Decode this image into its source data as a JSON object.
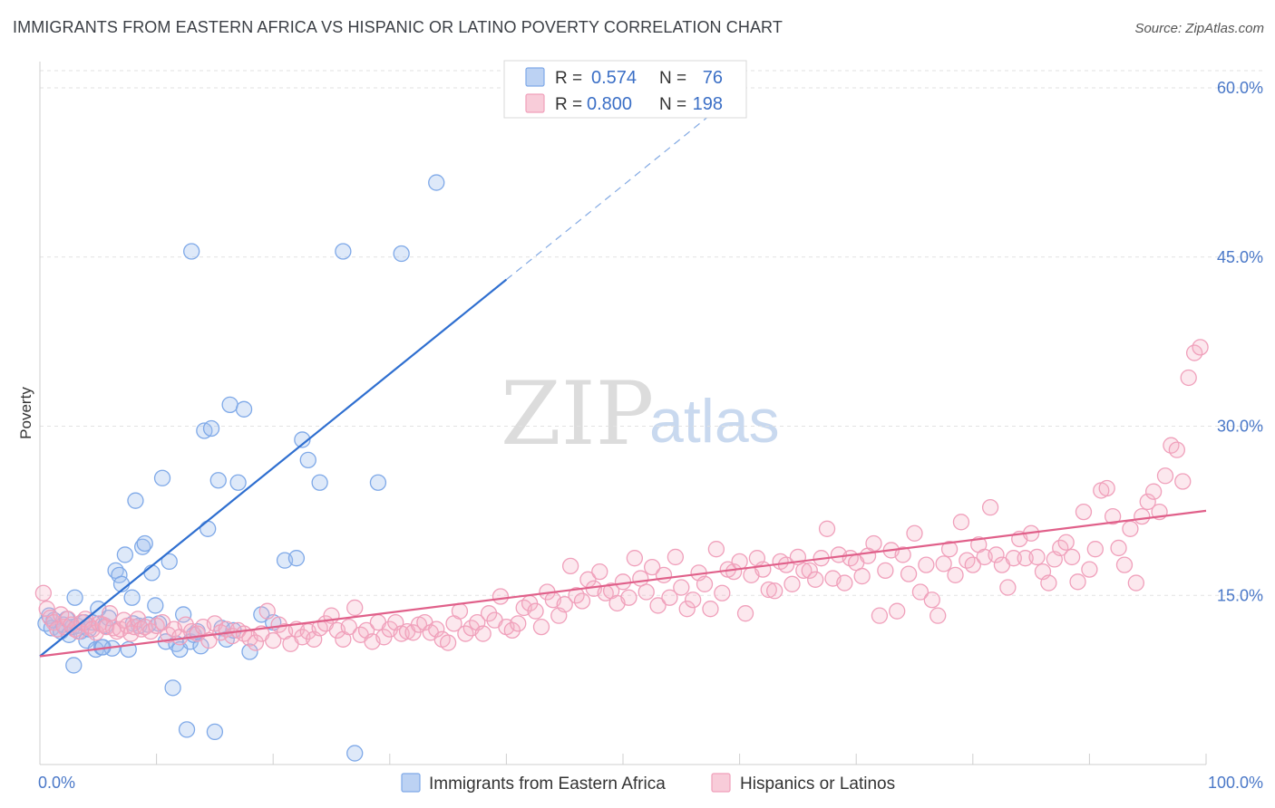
{
  "title": "IMMIGRANTS FROM EASTERN AFRICA VS HISPANIC OR LATINO POVERTY CORRELATION CHART",
  "source": "Source: ZipAtlas.com",
  "watermark": {
    "part1": "ZIP",
    "part2": "atlas"
  },
  "legend": {
    "r_label": "R =",
    "n_label": "N =",
    "rows": [
      {
        "r": "0.574",
        "n": "76",
        "color": "#7fa9e8"
      },
      {
        "r": "0.800",
        "n": "198",
        "color": "#f0a0bb"
      }
    ]
  },
  "chart_data": {
    "type": "scatter",
    "title": "IMMIGRANTS FROM EASTERN AFRICA VS HISPANIC OR LATINO POVERTY CORRELATION CHART",
    "xlabel": "",
    "ylabel": "Poverty",
    "xlim": [
      0,
      100
    ],
    "ylim": [
      0,
      60
    ],
    "x_tick_labels": [
      "0.0%",
      "100.0%"
    ],
    "y_ticks": [
      15,
      30,
      45,
      60
    ],
    "y_tick_labels": [
      "15.0%",
      "30.0%",
      "45.0%",
      "60.0%"
    ],
    "grid": true,
    "legend_position": "top-center",
    "series": [
      {
        "name": "Immigrants from Eastern Africa",
        "color": "#7fa9e8",
        "line_color": "#2f6fd0",
        "trend": {
          "x0": 0,
          "y0": 9.6,
          "x1": 40,
          "y1": 43.0,
          "dash_to_x": 60,
          "dash_to_y": 59.7
        },
        "points": [
          [
            0.5,
            12.5
          ],
          [
            0.8,
            13.2
          ],
          [
            1.0,
            12.1
          ],
          [
            1.2,
            12.8
          ],
          [
            1.5,
            12.0
          ],
          [
            1.8,
            11.8
          ],
          [
            2.0,
            12.4
          ],
          [
            2.3,
            12.9
          ],
          [
            2.5,
            11.5
          ],
          [
            2.8,
            12.2
          ],
          [
            3.0,
            14.8
          ],
          [
            3.2,
            12.3
          ],
          [
            3.5,
            11.8
          ],
          [
            3.8,
            12.6
          ],
          [
            4.0,
            11.0
          ],
          [
            4.2,
            12.0
          ],
          [
            4.5,
            12.6
          ],
          [
            4.8,
            10.2
          ],
          [
            5.0,
            13.8
          ],
          [
            5.3,
            10.4
          ],
          [
            5.6,
            12.3
          ],
          [
            5.9,
            13.0
          ],
          [
            6.2,
            10.3
          ],
          [
            6.5,
            17.2
          ],
          [
            6.8,
            16.8
          ],
          [
            7.0,
            16.0
          ],
          [
            7.3,
            18.6
          ],
          [
            7.6,
            10.2
          ],
          [
            7.9,
            14.8
          ],
          [
            8.2,
            23.4
          ],
          [
            8.5,
            12.3
          ],
          [
            8.8,
            19.3
          ],
          [
            9.0,
            19.6
          ],
          [
            9.3,
            12.4
          ],
          [
            9.6,
            17.0
          ],
          [
            9.9,
            14.1
          ],
          [
            10.2,
            12.5
          ],
          [
            10.5,
            25.4
          ],
          [
            10.8,
            10.9
          ],
          [
            11.1,
            18.0
          ],
          [
            11.4,
            6.8
          ],
          [
            11.7,
            10.7
          ],
          [
            12.0,
            10.2
          ],
          [
            12.3,
            13.3
          ],
          [
            12.6,
            3.1
          ],
          [
            12.9,
            10.9
          ],
          [
            13.2,
            11.5
          ],
          [
            13.5,
            11.8
          ],
          [
            13.8,
            10.5
          ],
          [
            14.1,
            29.6
          ],
          [
            14.4,
            20.9
          ],
          [
            14.7,
            29.8
          ],
          [
            15.0,
            2.9
          ],
          [
            15.3,
            25.2
          ],
          [
            15.6,
            12.1
          ],
          [
            16.0,
            11.1
          ],
          [
            16.3,
            31.9
          ],
          [
            16.6,
            11.9
          ],
          [
            17.0,
            25.0
          ],
          [
            17.5,
            31.5
          ],
          [
            18.0,
            10.0
          ],
          [
            19.0,
            13.3
          ],
          [
            20.0,
            12.6
          ],
          [
            21.0,
            18.1
          ],
          [
            22.0,
            18.3
          ],
          [
            22.5,
            28.8
          ],
          [
            23.0,
            27.0
          ],
          [
            24.0,
            25.0
          ],
          [
            26.0,
            45.5
          ],
          [
            27.0,
            1.0
          ],
          [
            29.0,
            25.0
          ],
          [
            31.0,
            45.3
          ],
          [
            34.0,
            51.6
          ],
          [
            13.0,
            45.5
          ],
          [
            2.9,
            8.8
          ],
          [
            5.4,
            10.4
          ],
          [
            8.0,
            12.5
          ]
        ]
      },
      {
        "name": "Hispanics or Latinos",
        "color": "#f0a0bb",
        "line_color": "#e0608a",
        "trend": {
          "x0": 0,
          "y0": 9.6,
          "x1": 100,
          "y1": 22.5
        },
        "points": [
          [
            0.3,
            15.2
          ],
          [
            0.6,
            13.8
          ],
          [
            0.9,
            13.0
          ],
          [
            1.2,
            12.6
          ],
          [
            1.5,
            12.0
          ],
          [
            1.8,
            13.3
          ],
          [
            2.1,
            12.2
          ],
          [
            2.4,
            12.9
          ],
          [
            2.7,
            12.4
          ],
          [
            3.0,
            12.0
          ],
          [
            3.3,
            11.8
          ],
          [
            3.6,
            12.6
          ],
          [
            3.9,
            12.9
          ],
          [
            4.2,
            12.3
          ],
          [
            4.5,
            12.0
          ],
          [
            4.8,
            11.7
          ],
          [
            5.1,
            12.5
          ],
          [
            5.4,
            12.4
          ],
          [
            5.7,
            12.2
          ],
          [
            6.0,
            13.4
          ],
          [
            6.3,
            12.1
          ],
          [
            6.6,
            11.8
          ],
          [
            6.9,
            12.0
          ],
          [
            7.2,
            12.8
          ],
          [
            7.5,
            12.3
          ],
          [
            7.8,
            11.6
          ],
          [
            8.1,
            12.2
          ],
          [
            8.4,
            12.9
          ],
          [
            8.7,
            12.0
          ],
          [
            9.0,
            12.2
          ],
          [
            9.5,
            11.8
          ],
          [
            10.0,
            12.3
          ],
          [
            10.5,
            12.6
          ],
          [
            11.0,
            11.5
          ],
          [
            11.5,
            12.0
          ],
          [
            12.0,
            11.3
          ],
          [
            12.5,
            12.4
          ],
          [
            13.0,
            11.8
          ],
          [
            13.5,
            11.6
          ],
          [
            14.0,
            12.2
          ],
          [
            14.5,
            11.0
          ],
          [
            15.0,
            12.5
          ],
          [
            15.5,
            11.7
          ],
          [
            16.0,
            12.0
          ],
          [
            16.5,
            11.4
          ],
          [
            17.0,
            11.9
          ],
          [
            17.5,
            11.6
          ],
          [
            18.0,
            11.2
          ],
          [
            18.5,
            10.8
          ],
          [
            19.0,
            11.6
          ],
          [
            19.5,
            13.6
          ],
          [
            20.0,
            11.0
          ],
          [
            20.5,
            12.4
          ],
          [
            21.0,
            11.8
          ],
          [
            21.5,
            10.7
          ],
          [
            22.0,
            12.0
          ],
          [
            22.5,
            11.3
          ],
          [
            23.0,
            11.8
          ],
          [
            23.5,
            11.1
          ],
          [
            24.0,
            12.1
          ],
          [
            24.5,
            12.5
          ],
          [
            25.0,
            13.2
          ],
          [
            25.5,
            11.9
          ],
          [
            26.0,
            11.1
          ],
          [
            26.5,
            12.2
          ],
          [
            27.0,
            13.9
          ],
          [
            27.5,
            11.5
          ],
          [
            28.0,
            11.9
          ],
          [
            28.5,
            10.9
          ],
          [
            29.0,
            12.6
          ],
          [
            29.5,
            11.3
          ],
          [
            30.0,
            12.0
          ],
          [
            30.5,
            12.6
          ],
          [
            31.0,
            11.6
          ],
          [
            31.5,
            11.8
          ],
          [
            32.0,
            11.7
          ],
          [
            32.5,
            12.4
          ],
          [
            33.0,
            12.6
          ],
          [
            33.5,
            11.7
          ],
          [
            34.0,
            12.0
          ],
          [
            34.5,
            11.1
          ],
          [
            35.0,
            10.8
          ],
          [
            35.5,
            12.5
          ],
          [
            36.0,
            13.6
          ],
          [
            36.5,
            11.6
          ],
          [
            37.0,
            12.1
          ],
          [
            37.5,
            12.6
          ],
          [
            38.0,
            11.6
          ],
          [
            38.5,
            13.4
          ],
          [
            39.0,
            12.8
          ],
          [
            39.5,
            14.9
          ],
          [
            40.0,
            12.2
          ],
          [
            40.5,
            11.9
          ],
          [
            41.0,
            12.5
          ],
          [
            41.5,
            13.9
          ],
          [
            42.0,
            14.3
          ],
          [
            42.5,
            13.6
          ],
          [
            43.0,
            12.2
          ],
          [
            43.5,
            15.3
          ],
          [
            44.0,
            14.6
          ],
          [
            44.5,
            13.2
          ],
          [
            45.0,
            14.2
          ],
          [
            45.5,
            17.6
          ],
          [
            46.0,
            15.0
          ],
          [
            46.5,
            14.5
          ],
          [
            47.0,
            16.4
          ],
          [
            47.5,
            15.6
          ],
          [
            48.0,
            17.1
          ],
          [
            48.5,
            15.2
          ],
          [
            49.0,
            15.4
          ],
          [
            49.5,
            14.3
          ],
          [
            50.0,
            16.2
          ],
          [
            50.5,
            14.8
          ],
          [
            51.0,
            18.3
          ],
          [
            51.5,
            16.5
          ],
          [
            52.0,
            15.3
          ],
          [
            52.5,
            17.5
          ],
          [
            53.0,
            14.1
          ],
          [
            53.5,
            16.8
          ],
          [
            54.0,
            14.8
          ],
          [
            54.5,
            18.4
          ],
          [
            55.0,
            15.7
          ],
          [
            55.5,
            13.8
          ],
          [
            56.0,
            14.6
          ],
          [
            56.5,
            17.0
          ],
          [
            57.0,
            16.0
          ],
          [
            57.5,
            13.8
          ],
          [
            58.0,
            19.1
          ],
          [
            58.5,
            15.2
          ],
          [
            59.0,
            17.3
          ],
          [
            59.5,
            17.1
          ],
          [
            60.0,
            18.0
          ],
          [
            60.5,
            13.4
          ],
          [
            61.0,
            16.8
          ],
          [
            61.5,
            18.3
          ],
          [
            62.0,
            17.3
          ],
          [
            62.5,
            15.5
          ],
          [
            63.0,
            15.4
          ],
          [
            63.5,
            18.0
          ],
          [
            64.0,
            17.7
          ],
          [
            64.5,
            16.0
          ],
          [
            65.0,
            18.4
          ],
          [
            65.5,
            17.2
          ],
          [
            66.0,
            17.2
          ],
          [
            66.5,
            16.4
          ],
          [
            67.0,
            18.3
          ],
          [
            67.5,
            20.9
          ],
          [
            68.0,
            16.5
          ],
          [
            68.5,
            18.6
          ],
          [
            69.0,
            16.1
          ],
          [
            69.5,
            18.3
          ],
          [
            70.0,
            17.9
          ],
          [
            70.5,
            16.7
          ],
          [
            71.0,
            18.5
          ],
          [
            71.5,
            19.6
          ],
          [
            72.0,
            13.2
          ],
          [
            72.5,
            17.2
          ],
          [
            73.0,
            19.0
          ],
          [
            73.5,
            13.6
          ],
          [
            74.0,
            18.6
          ],
          [
            74.5,
            16.9
          ],
          [
            75.0,
            20.5
          ],
          [
            75.5,
            15.3
          ],
          [
            76.0,
            17.7
          ],
          [
            76.5,
            14.6
          ],
          [
            77.0,
            13.2
          ],
          [
            77.5,
            17.8
          ],
          [
            78.0,
            19.1
          ],
          [
            78.5,
            16.8
          ],
          [
            79.0,
            21.5
          ],
          [
            79.5,
            18.1
          ],
          [
            80.0,
            17.7
          ],
          [
            80.5,
            19.5
          ],
          [
            81.0,
            18.4
          ],
          [
            81.5,
            22.8
          ],
          [
            82.0,
            18.6
          ],
          [
            82.5,
            17.7
          ],
          [
            83.0,
            15.7
          ],
          [
            83.5,
            18.3
          ],
          [
            84.0,
            20.0
          ],
          [
            84.5,
            18.3
          ],
          [
            85.0,
            20.5
          ],
          [
            85.5,
            18.4
          ],
          [
            86.0,
            17.1
          ],
          [
            86.5,
            16.1
          ],
          [
            87.0,
            18.2
          ],
          [
            87.5,
            19.2
          ],
          [
            88.0,
            19.7
          ],
          [
            88.5,
            18.4
          ],
          [
            89.0,
            16.2
          ],
          [
            89.5,
            22.4
          ],
          [
            90.0,
            17.3
          ],
          [
            90.5,
            19.1
          ],
          [
            91.0,
            24.3
          ],
          [
            91.5,
            24.5
          ],
          [
            92.0,
            22.0
          ],
          [
            92.5,
            19.2
          ],
          [
            93.0,
            17.7
          ],
          [
            93.5,
            20.9
          ],
          [
            94.0,
            16.1
          ],
          [
            94.5,
            22.0
          ],
          [
            95.0,
            23.3
          ],
          [
            95.5,
            24.2
          ],
          [
            96.0,
            22.4
          ],
          [
            96.5,
            25.6
          ],
          [
            97.0,
            28.3
          ],
          [
            97.5,
            27.9
          ],
          [
            98.0,
            25.1
          ],
          [
            98.5,
            34.3
          ],
          [
            99.0,
            36.5
          ],
          [
            99.5,
            37.0
          ]
        ]
      }
    ]
  }
}
